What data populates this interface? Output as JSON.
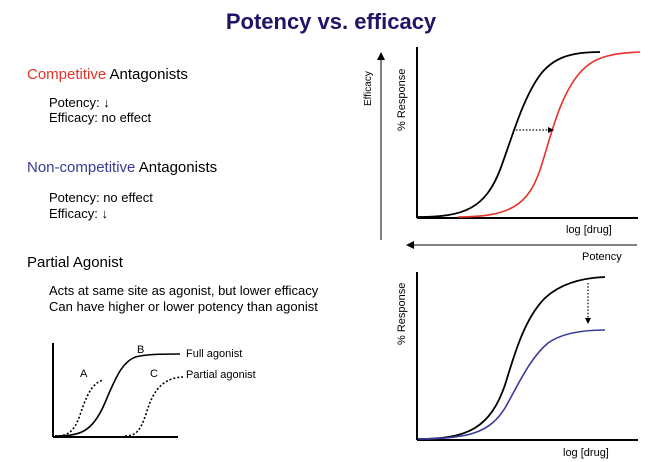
{
  "title": "Potency vs. efficacy",
  "colors": {
    "title": "#1f1566",
    "competitive": "#e5332a",
    "noncompetitive": "#3a3a9a",
    "black": "#000000"
  },
  "left": {
    "competitive": {
      "keyword": "Competitive",
      "rest": " Antagonists",
      "potency": "Potency: ↓",
      "efficacy": "Efficacy: no effect"
    },
    "noncompetitive": {
      "keyword": "Non-competitive",
      "rest": " Antagonists",
      "potency": "Potency: no effect",
      "efficacy": "Efficacy: ↓"
    },
    "partial": {
      "heading": "Partial Agonist",
      "line1": "Acts at same site as agonist, but lower efficacy",
      "line2": "Can have higher or lower potency than agonist"
    }
  },
  "small_chart": {
    "labels": {
      "A": "A",
      "B": "B",
      "C": "C"
    },
    "full_agonist": "Full agonist",
    "partial_agonist": "Partial agonist"
  },
  "top_chart": {
    "efficacy_label": "Efficacy",
    "ylabel": "% Response",
    "xlabel": "log [drug]",
    "potency_label": "Potency"
  },
  "bottom_chart": {
    "ylabel": "% Response",
    "xlabel": "log [drug]"
  }
}
